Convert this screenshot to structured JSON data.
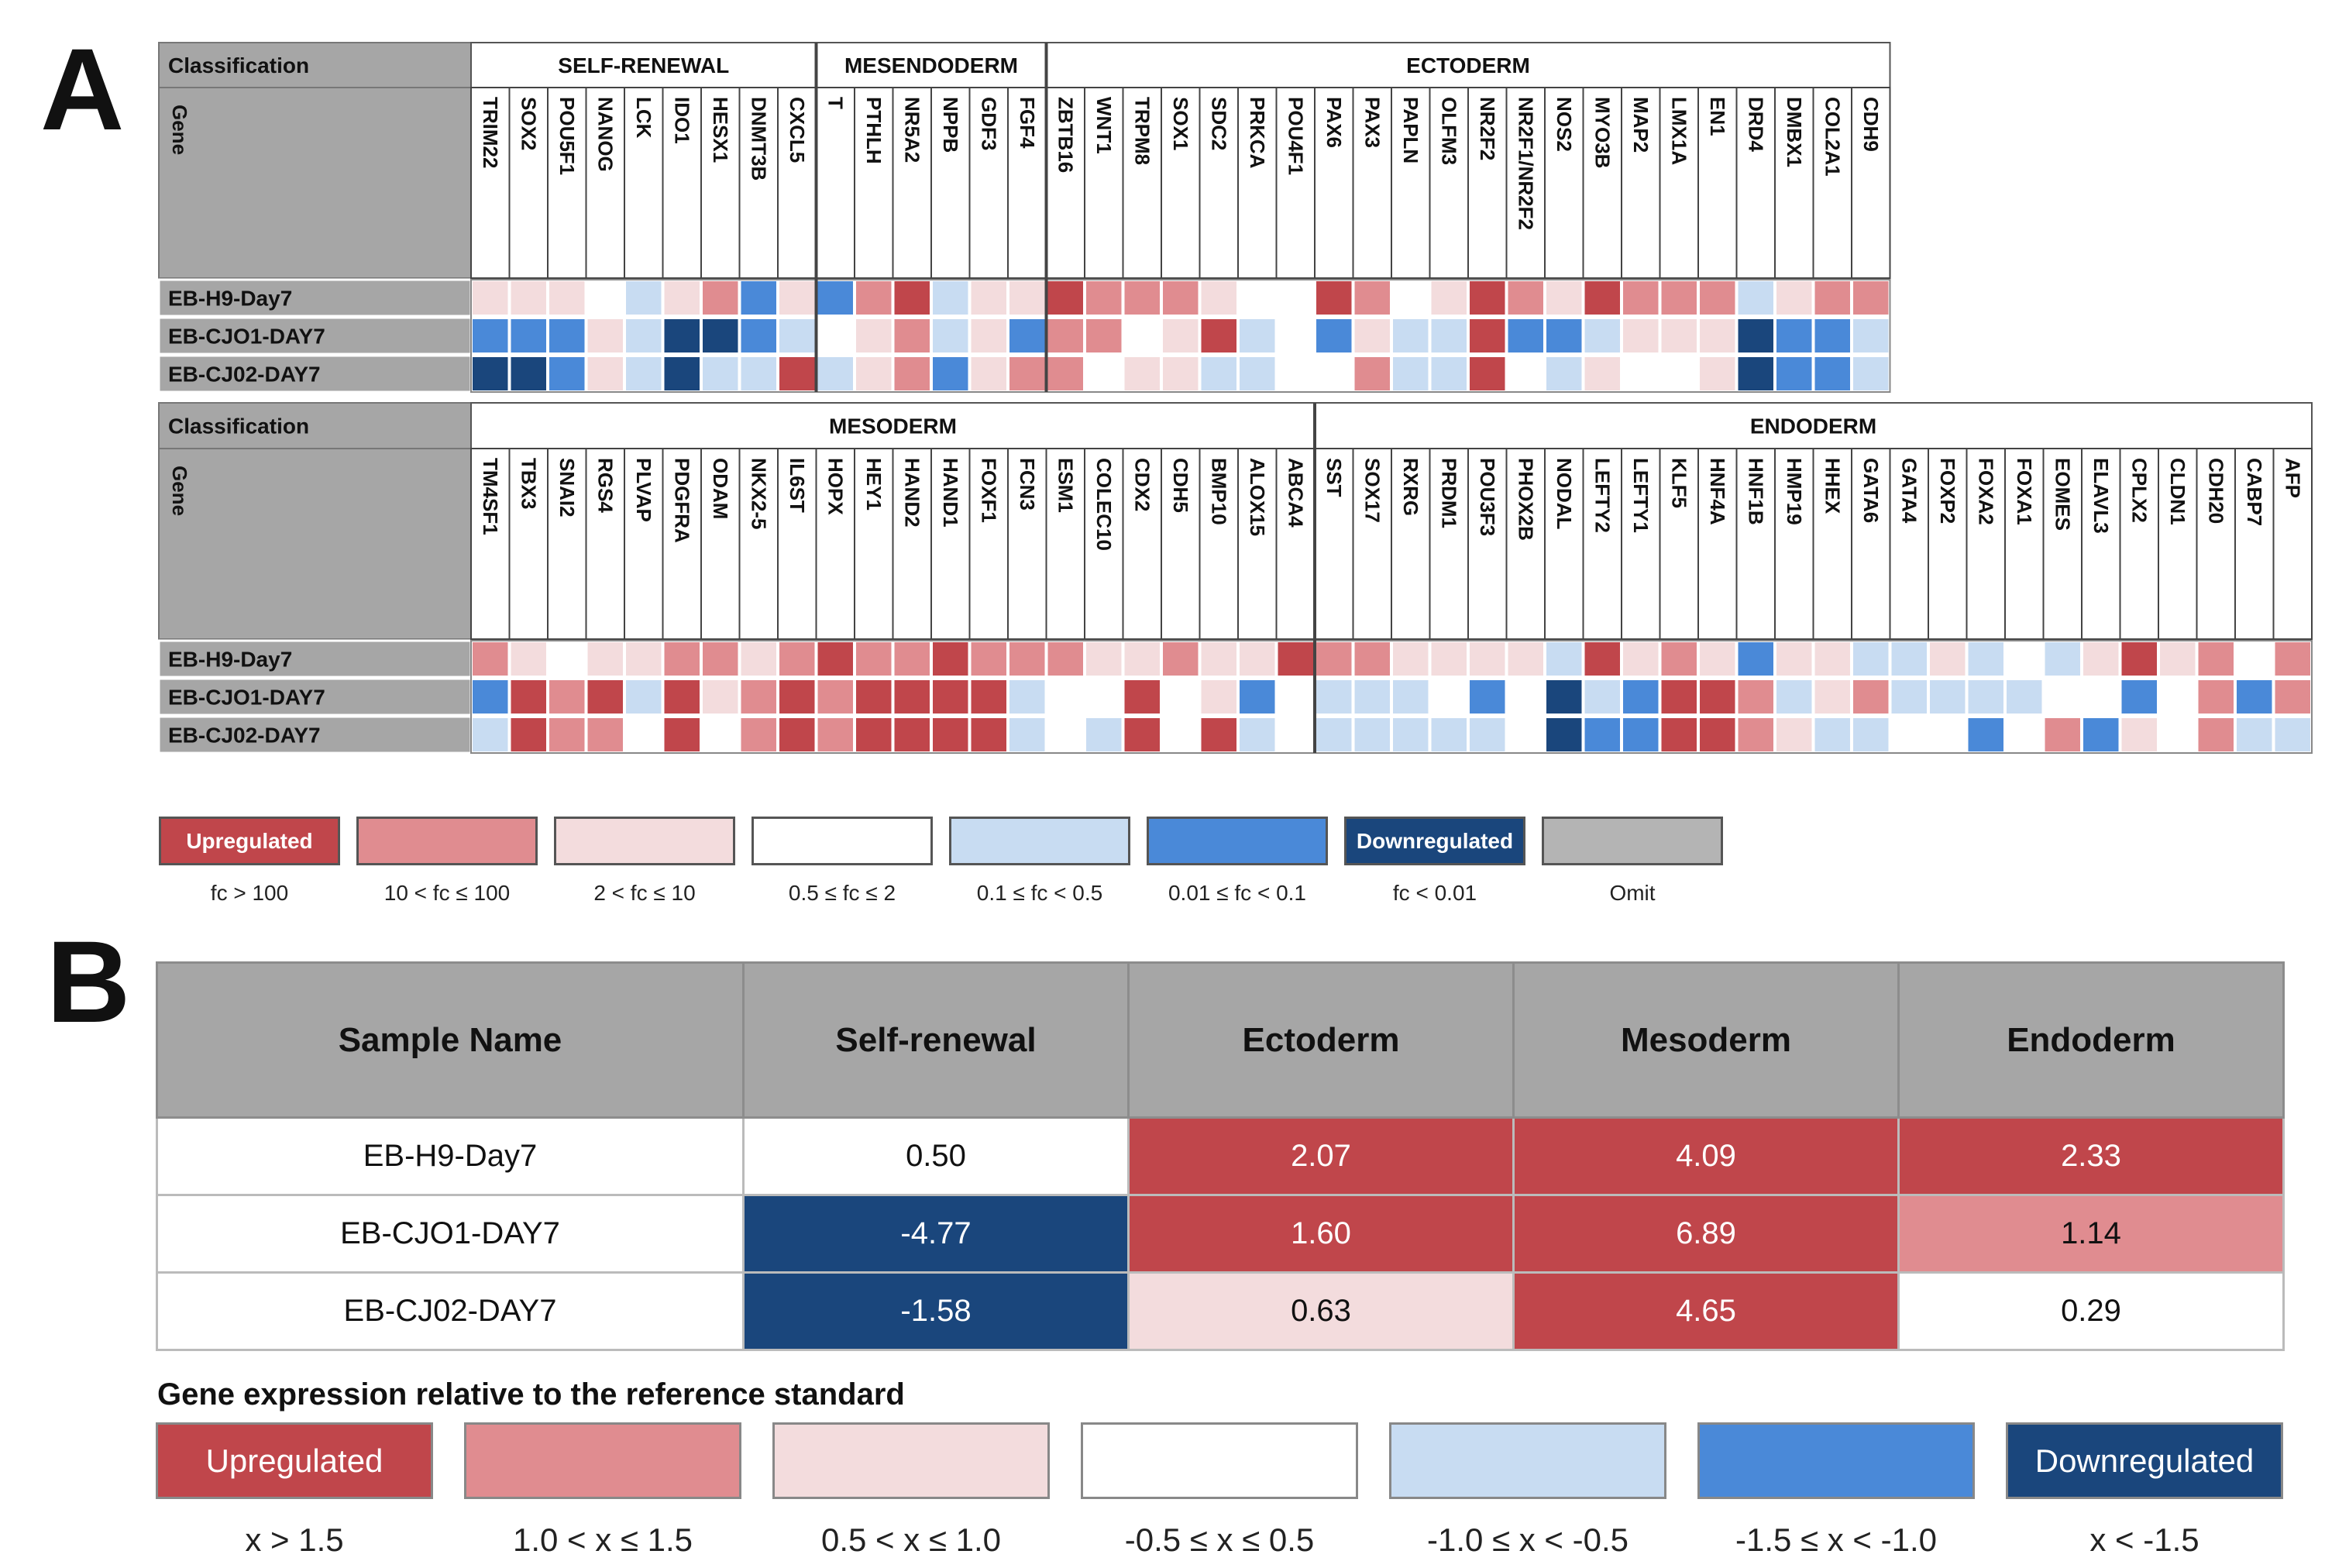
{
  "panel_labels": {
    "a": "A",
    "b": "B"
  },
  "colors": {
    "up": "#c0464b",
    "mid_up": "#e08c90",
    "low_up": "#f3dcdd",
    "neutral": "#ffffff",
    "low_down": "#c8dcf2",
    "mid_down": "#4a89d8",
    "down": "#1a467c",
    "omit": "#b4b4b4"
  },
  "chart_data": [
    {
      "type": "heatmap",
      "title": "Panel A",
      "row_header_classification": "Classification",
      "row_header_gene": "Gene",
      "samples": [
        "EB-H9-Day7",
        "EB-CJO1-DAY7",
        "EB-CJ02-DAY7"
      ],
      "level_legend": [
        "up: fc > 100",
        "mid_up: 10 < fc ≤ 100",
        "low_up: 2 < fc ≤ 10",
        "neutral: 0.5 ≤ fc ≤ 2",
        "low_down: 0.1 ≤ fc < 0.5",
        "mid_down: 0.01 ≤ fc < 0.1",
        "down: fc < 0.01"
      ],
      "blocks": [
        {
          "groups": [
            {
              "name": "SELF-RENEWAL",
              "genes": [
                "TRIM22",
                "SOX2",
                "POU5F1",
                "NANOG",
                "LCK",
                "IDO1",
                "HESX1",
                "DNMT3B",
                "CXCL5"
              ]
            },
            {
              "name": "MESENDODERM",
              "genes": [
                "T",
                "PTHLH",
                "NR5A2",
                "NPPB",
                "GDF3",
                "FGF4"
              ]
            },
            {
              "name": "ECTODERM",
              "genes": [
                "ZBTB16",
                "WNT1",
                "TRPM8",
                "SOX1",
                "SDC2",
                "PRKCA",
                "POU4F1",
                "PAX6",
                "PAX3",
                "PAPLN",
                "OLFM3",
                "NR2F2",
                "NR2F1/NR2F2",
                "NOS2",
                "MYO3B",
                "MAP2",
                "LMX1A",
                "EN1",
                "DRD4",
                "DMBX1",
                "COL2A1",
                "CDH9"
              ]
            }
          ],
          "values": [
            [
              "low_up",
              "low_up",
              "low_up",
              "neutral",
              "low_down",
              "low_up",
              "mid_up",
              "mid_down",
              "low_up",
              "mid_down",
              "mid_up",
              "up",
              "low_down",
              "low_up",
              "low_up",
              "up",
              "mid_up",
              "mid_up",
              "mid_up",
              "low_up",
              "neutral",
              "neutral",
              "up",
              "mid_up",
              "neutral",
              "low_up",
              "up",
              "mid_up",
              "low_up",
              "up",
              "mid_up",
              "mid_up",
              "mid_up",
              "low_down",
              "low_up",
              "mid_up",
              "mid_up"
            ],
            [
              "mid_down",
              "mid_down",
              "mid_down",
              "low_up",
              "low_down",
              "down",
              "down",
              "mid_down",
              "low_down",
              "neutral",
              "low_up",
              "mid_up",
              "low_down",
              "low_up",
              "mid_down",
              "mid_up",
              "mid_up",
              "neutral",
              "low_up",
              "up",
              "low_down",
              "neutral",
              "mid_down",
              "low_up",
              "low_down",
              "low_down",
              "up",
              "mid_down",
              "mid_down",
              "low_down",
              "low_up",
              "low_up",
              "low_up",
              "down",
              "mid_down",
              "mid_down",
              "low_down"
            ],
            [
              "down",
              "down",
              "mid_down",
              "low_up",
              "low_down",
              "down",
              "low_down",
              "low_down",
              "up",
              "low_down",
              "low_up",
              "mid_up",
              "mid_down",
              "low_up",
              "mid_up",
              "mid_up",
              "neutral",
              "low_up",
              "low_up",
              "low_down",
              "low_down",
              "neutral",
              "neutral",
              "mid_up",
              "low_down",
              "low_down",
              "up",
              "neutral",
              "low_down",
              "low_up",
              "neutral",
              "neutral",
              "low_up",
              "down",
              "mid_down",
              "mid_down",
              "low_down"
            ]
          ]
        },
        {
          "groups": [
            {
              "name": "MESODERM",
              "genes": [
                "TM4SF1",
                "TBX3",
                "SNAI2",
                "RGS4",
                "PLVAP",
                "PDGFRA",
                "ODAM",
                "NKX2-5",
                "IL6ST",
                "HOPX",
                "HEY1",
                "HAND2",
                "HAND1",
                "FOXF1",
                "FCN3",
                "ESM1",
                "COLEC10",
                "CDX2",
                "CDH5",
                "BMP10",
                "ALOX15",
                "ABCA4"
              ]
            },
            {
              "name": "ENDODERM",
              "genes": [
                "SST",
                "SOX17",
                "RXRG",
                "PRDM1",
                "POU3F3",
                "PHOX2B",
                "NODAL",
                "LEFTY2",
                "LEFTY1",
                "KLF5",
                "HNF4A",
                "HNF1B",
                "HMP19",
                "HHEX",
                "GATA6",
                "GATA4",
                "FOXP2",
                "FOXA2",
                "FOXA1",
                "EOMES",
                "ELAVL3",
                "CPLX2",
                "CLDN1",
                "CDH20",
                "CABP7",
                "AFP"
              ]
            }
          ],
          "values": [
            [
              "mid_up",
              "low_up",
              "neutral",
              "low_up",
              "low_up",
              "mid_up",
              "mid_up",
              "low_up",
              "mid_up",
              "up",
              "mid_up",
              "mid_up",
              "up",
              "mid_up",
              "mid_up",
              "mid_up",
              "low_up",
              "low_up",
              "mid_up",
              "low_up",
              "low_up",
              "up",
              "mid_up",
              "mid_up",
              "low_up",
              "low_up",
              "low_up",
              "low_up",
              "low_down",
              "up",
              "low_up",
              "mid_up",
              "low_up",
              "mid_down",
              "low_up",
              "low_up",
              "low_down",
              "low_down",
              "low_up",
              "low_down",
              "neutral",
              "low_down",
              "low_up",
              "up",
              "low_up",
              "mid_up",
              "neutral",
              "mid_up"
            ],
            [
              "mid_down",
              "up",
              "mid_up",
              "up",
              "low_down",
              "up",
              "low_up",
              "mid_up",
              "up",
              "mid_up",
              "up",
              "up",
              "up",
              "up",
              "low_down",
              "neutral",
              "neutral",
              "up",
              "neutral",
              "low_up",
              "mid_down",
              "neutral",
              "low_down",
              "low_down",
              "low_down",
              "neutral",
              "mid_down",
              "neutral",
              "down",
              "low_down",
              "mid_down",
              "up",
              "up",
              "mid_up",
              "low_down",
              "low_up",
              "mid_up",
              "low_down",
              "low_down",
              "low_down",
              "low_down",
              "neutral",
              "neutral",
              "mid_down",
              "neutral",
              "mid_up",
              "mid_down",
              "mid_up"
            ],
            [
              "low_down",
              "up",
              "mid_up",
              "mid_up",
              "neutral",
              "up",
              "neutral",
              "mid_up",
              "up",
              "mid_up",
              "up",
              "up",
              "up",
              "up",
              "low_down",
              "neutral",
              "low_down",
              "up",
              "neutral",
              "up",
              "low_down",
              "neutral",
              "low_down",
              "low_down",
              "low_down",
              "low_down",
              "low_down",
              "neutral",
              "down",
              "mid_down",
              "mid_down",
              "up",
              "up",
              "mid_up",
              "low_up",
              "low_down",
              "low_down",
              "neutral",
              "neutral",
              "mid_down",
              "neutral",
              "mid_up",
              "mid_down",
              "low_up",
              "neutral",
              "mid_up",
              "low_down",
              "low_down"
            ]
          ]
        }
      ]
    },
    {
      "type": "table",
      "title": "Panel B",
      "columns": [
        "Sample Name",
        "Self-renewal",
        "Ectoderm",
        "Mesoderm",
        "Endoderm"
      ],
      "rows": [
        {
          "sample": "EB-H9-Day7",
          "values": [
            "0.50",
            "2.07",
            "4.09",
            "2.33"
          ]
        },
        {
          "sample": "EB-CJO1-DAY7",
          "values": [
            "-4.77",
            "1.60",
            "6.89",
            "1.14"
          ]
        },
        {
          "sample": "EB-CJ02-DAY7",
          "values": [
            "-1.58",
            "0.63",
            "4.65",
            "0.29"
          ]
        }
      ],
      "legend_title": "Gene expression relative to the reference standard"
    }
  ],
  "legend_a": [
    {
      "level": "up",
      "label": "Upregulated",
      "caption": "fc > 100"
    },
    {
      "level": "mid_up",
      "label": "",
      "caption": "10 < fc ≤ 100"
    },
    {
      "level": "low_up",
      "label": "",
      "caption": "2 < fc ≤ 10"
    },
    {
      "level": "neutral",
      "label": "",
      "caption": "0.5 ≤ fc ≤ 2"
    },
    {
      "level": "low_down",
      "label": "",
      "caption": "0.1 ≤ fc < 0.5"
    },
    {
      "level": "mid_down",
      "label": "",
      "caption": "0.01 ≤ fc < 0.1"
    },
    {
      "level": "down",
      "label": "Downregulated",
      "caption": "fc < 0.01"
    },
    {
      "level": "omit",
      "label": "",
      "caption": "Omit"
    }
  ],
  "legend_b": {
    "title": "Gene expression relative to the reference standard",
    "items": [
      {
        "level": "up",
        "label": "Upregulated",
        "caption": "x > 1.5"
      },
      {
        "level": "mid_up",
        "label": "",
        "caption": "1.0 < x ≤ 1.5"
      },
      {
        "level": "low_up",
        "label": "",
        "caption": "0.5 < x ≤ 1.0"
      },
      {
        "level": "neutral",
        "label": "",
        "caption": "-0.5 ≤ x ≤ 0.5"
      },
      {
        "level": "low_down",
        "label": "",
        "caption": "-1.0 ≤ x < -0.5"
      },
      {
        "level": "mid_down",
        "label": "",
        "caption": "-1.5 ≤ x < -1.0"
      },
      {
        "level": "down",
        "label": "Downregulated",
        "caption": "x < -1.5"
      }
    ]
  }
}
